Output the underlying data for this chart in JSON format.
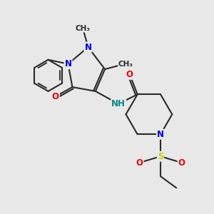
{
  "background_color": "#e8e8e8",
  "bond_color": "#2a2a2a",
  "bond_width": 1.5,
  "atom_colors": {
    "N": "#0000ee",
    "O": "#ee0000",
    "S": "#cccc00",
    "NH": "#008888",
    "C": "#2a2a2a"
  },
  "font_size": 8.5
}
